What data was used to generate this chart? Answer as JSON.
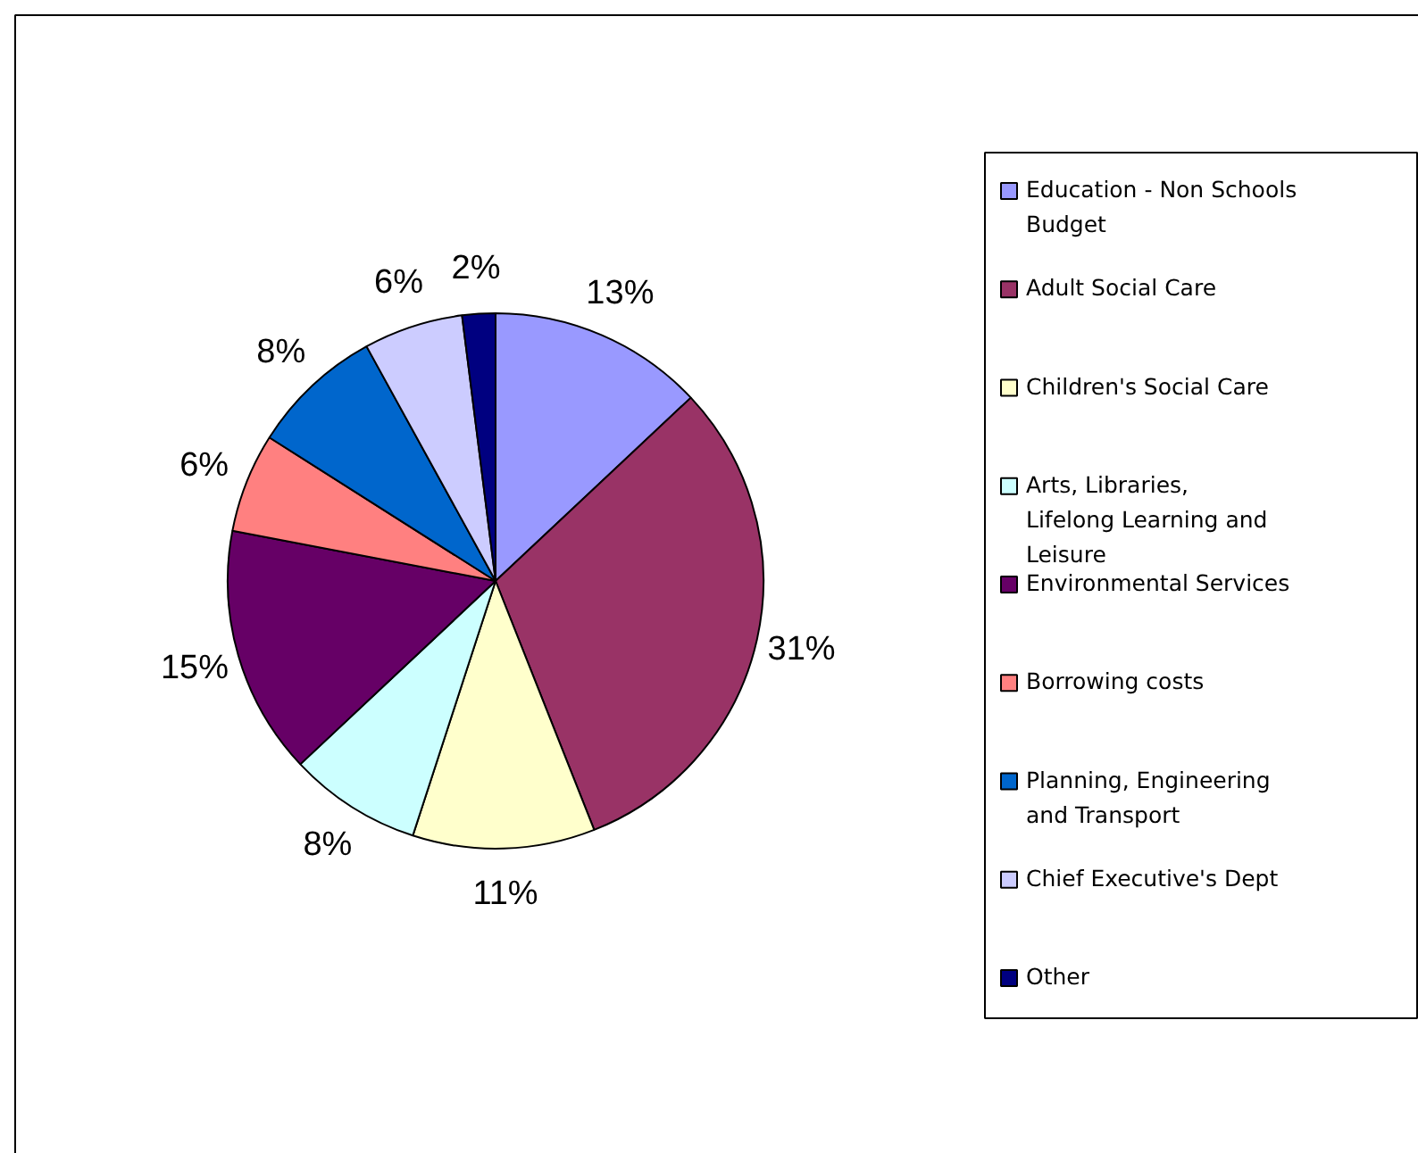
{
  "chart_data": {
    "type": "pie",
    "categories": [
      "Education - Non Schools Budget",
      "Adult Social Care",
      "Children's Social Care",
      "Arts, Libraries, Lifelong Learning and Leisure",
      "Environmental Services",
      "Borrowing costs",
      "Planning, Engineering and Transport",
      "Chief Executive's Dept",
      "Other"
    ],
    "values": [
      13,
      31,
      11,
      8,
      15,
      6,
      8,
      6,
      2
    ],
    "value_labels": [
      "13%",
      "31%",
      "11%",
      "8%",
      "15%",
      "6%",
      "8%",
      "6%",
      "2%"
    ],
    "colors": [
      "#9999ff",
      "#993366",
      "#ffffcc",
      "#ccffff",
      "#660066",
      "#ff8080",
      "#0066cc",
      "#ccccff",
      "#000080"
    ],
    "legend": "right"
  }
}
